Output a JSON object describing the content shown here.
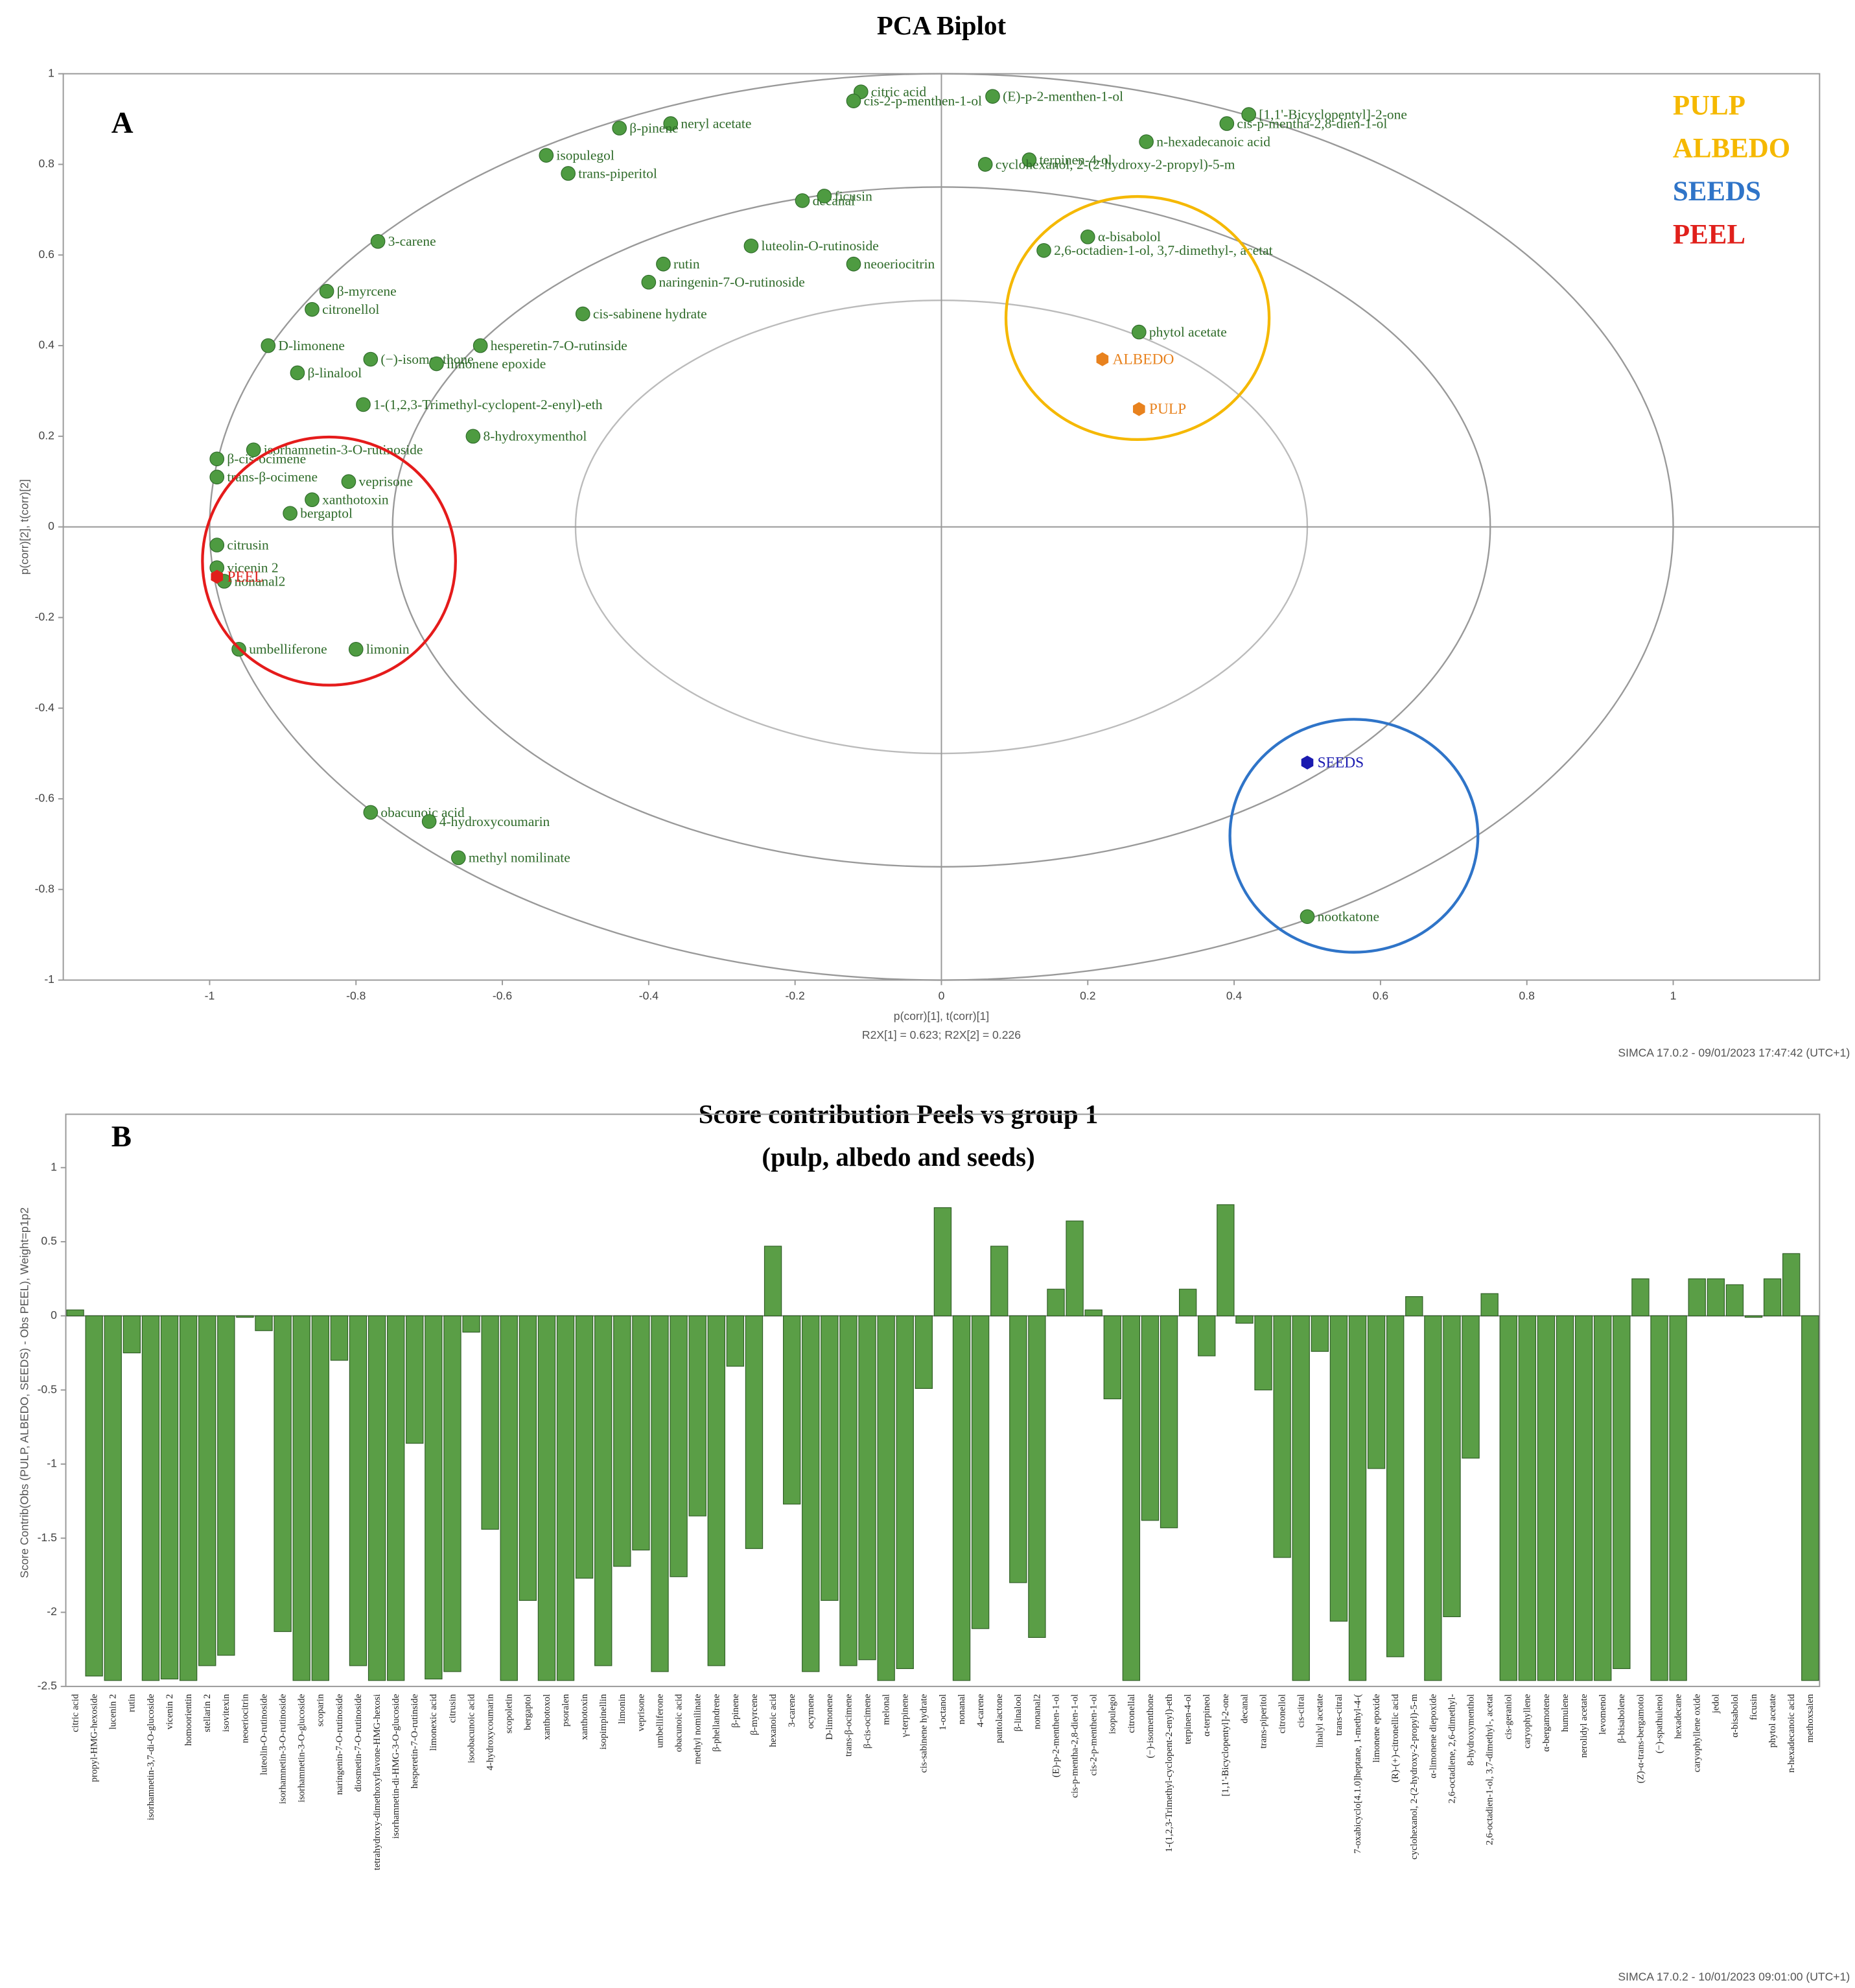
{
  "chart_data": [
    {
      "type": "scatter",
      "panel": "A",
      "title": "PCA Biplot",
      "x_label": "p(corr)[1], t(corr)[1]",
      "x_sublabel": "R2X[1] = 0.623; R2X[2] = 0.226",
      "y_label": "p(corr)[2], t(corr)[2]",
      "footer": "SIMCA 17.0.2 - 09/01/2023 17:47:42 (UTC+1)",
      "xlim": [
        -1.2,
        1.2
      ],
      "ylim": [
        -1,
        1
      ],
      "xticks": [
        -1,
        -0.8,
        -0.6,
        -0.4,
        -0.2,
        0,
        0.2,
        0.4,
        0.6,
        0.8,
        1
      ],
      "yticks": [
        -1,
        -0.8,
        -0.6,
        -0.4,
        -0.2,
        0,
        0.2,
        0.4,
        0.6,
        0.8,
        1
      ],
      "points": {
        "color": "#4e9b41",
        "labels": [
          "citric acid",
          "cis-2-p-menthen-1-ol",
          "(E)-p-2-menthen-1-ol",
          "[1,1'-Bicyclopentyl]-2-one",
          "cis-p-mentha-2,8-dien-1-ol",
          "n-hexadecanoic acid",
          "terpinen-4-ol",
          "cyclohexanol, 2-(2-hydroxy-2-propyl)-5-m",
          "neryl acetate",
          "β-pinene",
          "isopulegol",
          "trans-piperitol",
          "decanal",
          "ficusin",
          "3-carene",
          "luteolin-O-rutinoside",
          "neoeriocitrin",
          "rutin",
          "naringenin-7-O-rutinoside",
          "cis-sabinene hydrate",
          "β-myrcene",
          "citronellol",
          "D-limonene",
          "(−)-isomenthone",
          "hesperetin-7-O-rutinside",
          "limonene epoxide",
          "β-linalool",
          "1-(1,2,3-Trimethyl-cyclopent-2-enyl)-eth",
          "8-hydroxymenthol",
          "α-bisabolol",
          "2,6-octadien-1-ol, 3,7-dimethyl-, acetat",
          "phytol acetate",
          "obacunoic acid",
          "4-hydroxycoumarin",
          "methyl nomilinate",
          "limonin",
          "umbelliferone",
          "bergaptol",
          "xanthotoxin",
          "veprisone",
          "β-cis-ocimene",
          "trans-β-ocimene",
          "isorhamnetin-3-O-rutinoside",
          "citrusin",
          "vicenin 2",
          "nonanal2",
          "nootkatone"
        ],
        "x": [
          -0.11,
          -0.12,
          0.07,
          0.42,
          0.39,
          0.28,
          0.12,
          0.06,
          -0.37,
          -0.44,
          -0.54,
          -0.51,
          -0.19,
          -0.16,
          -0.77,
          -0.26,
          -0.12,
          -0.38,
          -0.4,
          -0.49,
          -0.84,
          -0.86,
          -0.92,
          -0.78,
          -0.63,
          -0.69,
          -0.88,
          -0.79,
          -0.64,
          0.2,
          0.14,
          0.27,
          -0.78,
          -0.7,
          -0.66,
          -0.8,
          -0.96,
          -0.89,
          -0.86,
          -0.81,
          -0.99,
          -0.99,
          -0.94,
          -0.99,
          -0.99,
          -0.98,
          0.5
        ],
        "y": [
          0.96,
          0.94,
          0.95,
          0.91,
          0.89,
          0.85,
          0.81,
          0.8,
          0.89,
          0.88,
          0.82,
          0.78,
          0.72,
          0.73,
          0.63,
          0.62,
          0.58,
          0.58,
          0.54,
          0.47,
          0.52,
          0.48,
          0.4,
          0.37,
          0.4,
          0.36,
          0.34,
          0.27,
          0.2,
          0.64,
          0.61,
          0.43,
          -0.63,
          -0.65,
          -0.73,
          -0.27,
          -0.27,
          0.03,
          0.06,
          0.1,
          0.15,
          0.11,
          0.17,
          -0.04,
          -0.09,
          -0.12,
          -0.86
        ]
      },
      "scores": {
        "labels": [
          "ALBEDO",
          "PULP",
          "SEEDS",
          "PEEL"
        ],
        "colors": [
          "#e8821e",
          "#e8821e",
          "#1a1ab0",
          "#e0201b"
        ],
        "x": [
          0.22,
          0.27,
          0.5,
          -0.99
        ],
        "y": [
          0.37,
          0.26,
          -0.52,
          -0.11
        ]
      },
      "legend": [
        {
          "name": "PULP",
          "color": "#f5b800"
        },
        {
          "name": "ALBEDO",
          "color": "#f5b800"
        },
        {
          "name": "SEEDS",
          "color": "#2f74c8"
        },
        {
          "name": "PEEL",
          "color": "#e0201b"
        }
      ]
    },
    {
      "type": "bar",
      "panel": "B",
      "title": "Score contribution Peels vs group 1",
      "subtitle": "(pulp, albedo and seeds)",
      "y_label": "Score Contrib(Obs (PULP, ALBEDO, SEEDS) - Obs PEEL), Weight=p1p2",
      "footer": "SIMCA 17.0.2 - 10/01/2023 09:01:00 (UTC+1)",
      "color": "#5a9e46",
      "ylim": [
        -2.5,
        1.36
      ],
      "yticks": [
        -2.5,
        -2,
        -1.5,
        -1,
        -0.5,
        0,
        0.5,
        1
      ],
      "categories": [
        "citric acid",
        "propyl-HMG-hexoside",
        "lucenin 2",
        "rutin",
        "isorhamnetin-3,7-di-O-glucoside",
        "vicenin 2",
        "homoorientin",
        "stellarin 2",
        "isovitexin",
        "neoeriocitrin",
        "luteolin-O-rutinoside",
        "isorhamnetin-3-O-rutinoside",
        "isorhamnetin-3-O-glucoside",
        "scoparin",
        "naringenin-7-O-rutinoside",
        "diosmetin-7-O-rutinoside",
        "tetrahydroxy-dimethoxyflavone-HMG-hexosi",
        "isorhamnetin-di-HMG-3-O-glucoside",
        "hesperetin-7-O-rutinside",
        "limonexic acid",
        "citrusin",
        "isoobacunoic acid",
        "4-hydroxycoumarin",
        "scopoletin",
        "bergaptol",
        "xanthotoxol",
        "psoralen",
        "xanthotoxin",
        "isopimpinellin",
        "limonin",
        "veprisone",
        "umbelliferone",
        "obacunoic acid",
        "methyl nomilinate",
        "β-phellandrene",
        "β-pinene",
        "β-myrcene",
        "hexanoic acid",
        "3-carene",
        "ocymene",
        "D-limonene",
        "trans-β-ocimene",
        "β-cis-ocimene",
        "melonal",
        "γ-terpinene",
        "cis-sabinene hydrate",
        "1-octanol",
        "nonanal",
        "4-carene",
        "pantolactone",
        "β-linalool",
        "nonanal2",
        "(E)-p-2-menthen-1-ol",
        "cis-p-mentha-2,8-dien-1-ol",
        "cis-2-p-menthen-1-ol",
        "isopulegol",
        "citronellal",
        "(−)-isomenthone",
        "1-(1,2,3-Trimethyl-cyclopent-2-enyl)-eth",
        "terpinen-4-ol",
        "α-terpineol",
        "[1,1'-Bicyclopentyl]-2-one",
        "decanal",
        "trans-piperitol",
        "citronellol",
        "cis-citral",
        "linalyl acetate",
        "trans-citral",
        "7-oxabicyclo[4.1.0]heptane, 1-methyl-4-(",
        "limonene epoxide",
        "(R)-(+)-citronellic acid",
        "cyclohexanol, 2-(2-hydroxy-2-propyl)-5-m",
        "α-limonene diepoxide",
        "2,6-octadiene, 2,6-dimethyl-",
        "8-hydroxymenthol",
        "2,6-octadien-1-ol, 3,7-dimethyl-, acetat",
        "cis-geraniol",
        "caryophyllene",
        "α-bergamotene",
        "humulene",
        "nerolidyl acetate",
        "levomenol",
        "β-bisabolene",
        "(Z)-α-trans-bergamotol",
        "(−)-spathulenol",
        "hexadecane",
        "caryophyllene oxide",
        "jedol",
        "α-bisabolol",
        "ficusin",
        "phytol acetate",
        "n-hexadecanoic acid",
        "methoxsalen"
      ],
      "values": [
        0.04,
        -2.43,
        -2.46,
        -0.25,
        -2.46,
        -2.45,
        -2.46,
        -2.36,
        -2.29,
        -0.01,
        -0.1,
        -2.13,
        -2.46,
        -2.46,
        -0.3,
        -2.36,
        -2.46,
        -2.46,
        -0.86,
        -2.45,
        -2.4,
        -0.11,
        -1.44,
        -2.46,
        -1.92,
        -2.46,
        -2.46,
        -1.77,
        -2.36,
        -1.69,
        -1.58,
        -2.4,
        -1.76,
        -1.35,
        -2.36,
        -0.34,
        -1.57,
        0.47,
        -1.27,
        -2.4,
        -1.92,
        -2.36,
        -2.32,
        -2.46,
        -2.38,
        -0.49,
        0.73,
        -2.46,
        -2.11,
        0.47,
        -1.8,
        -2.17,
        0.18,
        0.64,
        0.04,
        -0.56,
        -2.46,
        -1.38,
        -1.43,
        0.18,
        -0.27,
        0.75,
        -0.05,
        -0.5,
        -1.63,
        -2.46,
        -0.24,
        -2.06,
        -2.46,
        -1.03,
        -2.3,
        0.13,
        -2.46,
        -2.03,
        -0.96,
        0.15,
        -2.46,
        -2.46,
        -2.46,
        -2.46,
        -2.46,
        -2.46,
        -2.38,
        0.25,
        -2.46,
        -2.46,
        0.25,
        0.25,
        0.21,
        -0.01,
        0.25,
        0.42,
        -2.46
      ]
    }
  ]
}
